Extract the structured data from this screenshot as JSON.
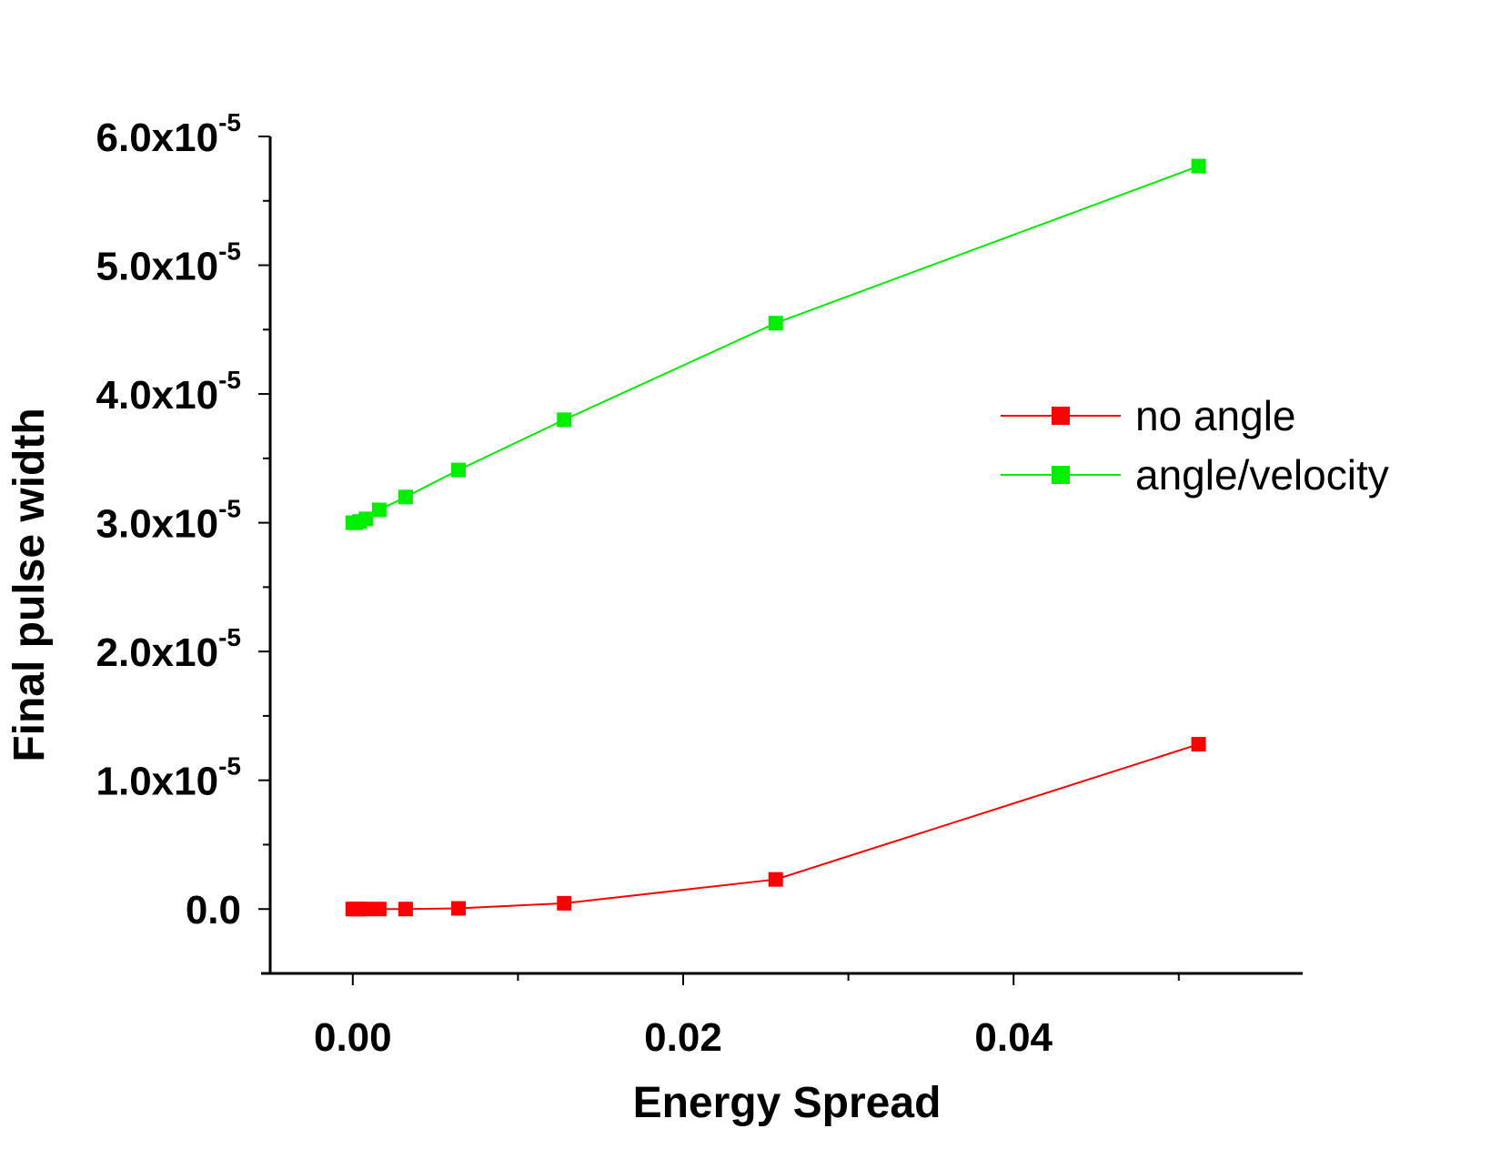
{
  "chart_data": {
    "type": "line",
    "title": "",
    "xlabel": "Energy Spread",
    "ylabel": "Final pulse width",
    "xlim": [
      -0.005,
      0.0575
    ],
    "ylim": [
      -5e-06,
      6e-05
    ],
    "x_ticks": [
      {
        "value": 0.0,
        "label": "0.00"
      },
      {
        "value": 0.02,
        "label": "0.02"
      },
      {
        "value": 0.04,
        "label": "0.04"
      }
    ],
    "y_ticks": [
      {
        "value": 0.0,
        "mantissa": "0.0",
        "exp": ""
      },
      {
        "value": 1e-05,
        "mantissa": "1.0x10",
        "exp": "-5"
      },
      {
        "value": 2e-05,
        "mantissa": "2.0x10",
        "exp": "-5"
      },
      {
        "value": 3e-05,
        "mantissa": "3.0x10",
        "exp": "-5"
      },
      {
        "value": 4e-05,
        "mantissa": "4.0x10",
        "exp": "-5"
      },
      {
        "value": 5e-05,
        "mantissa": "5.0x10",
        "exp": "-5"
      },
      {
        "value": 6e-05,
        "mantissa": "6.0x10",
        "exp": "-5"
      }
    ],
    "legend_position": "right",
    "series": [
      {
        "name": "no angle",
        "color": "#ff0000",
        "marker": "square",
        "x": [
          0.0,
          0.0002,
          0.0004,
          0.0008,
          0.0016,
          0.0032,
          0.0064,
          0.0128,
          0.0256,
          0.0512
        ],
        "y": [
          0.0,
          0.0,
          0.0,
          0.0,
          0.0,
          0.0,
          5e-08,
          4.5e-07,
          2.3e-06,
          1.28e-05
        ]
      },
      {
        "name": "angle/velocity",
        "color": "#00ee00",
        "marker": "square",
        "x": [
          0.0,
          0.0002,
          0.0004,
          0.0008,
          0.0016,
          0.0032,
          0.0064,
          0.0128,
          0.0256,
          0.0512
        ],
        "y": [
          3e-05,
          3e-05,
          3.01e-05,
          3.03e-05,
          3.1e-05,
          3.2e-05,
          3.41e-05,
          3.8e-05,
          4.55e-05,
          5.77e-05
        ]
      }
    ]
  }
}
